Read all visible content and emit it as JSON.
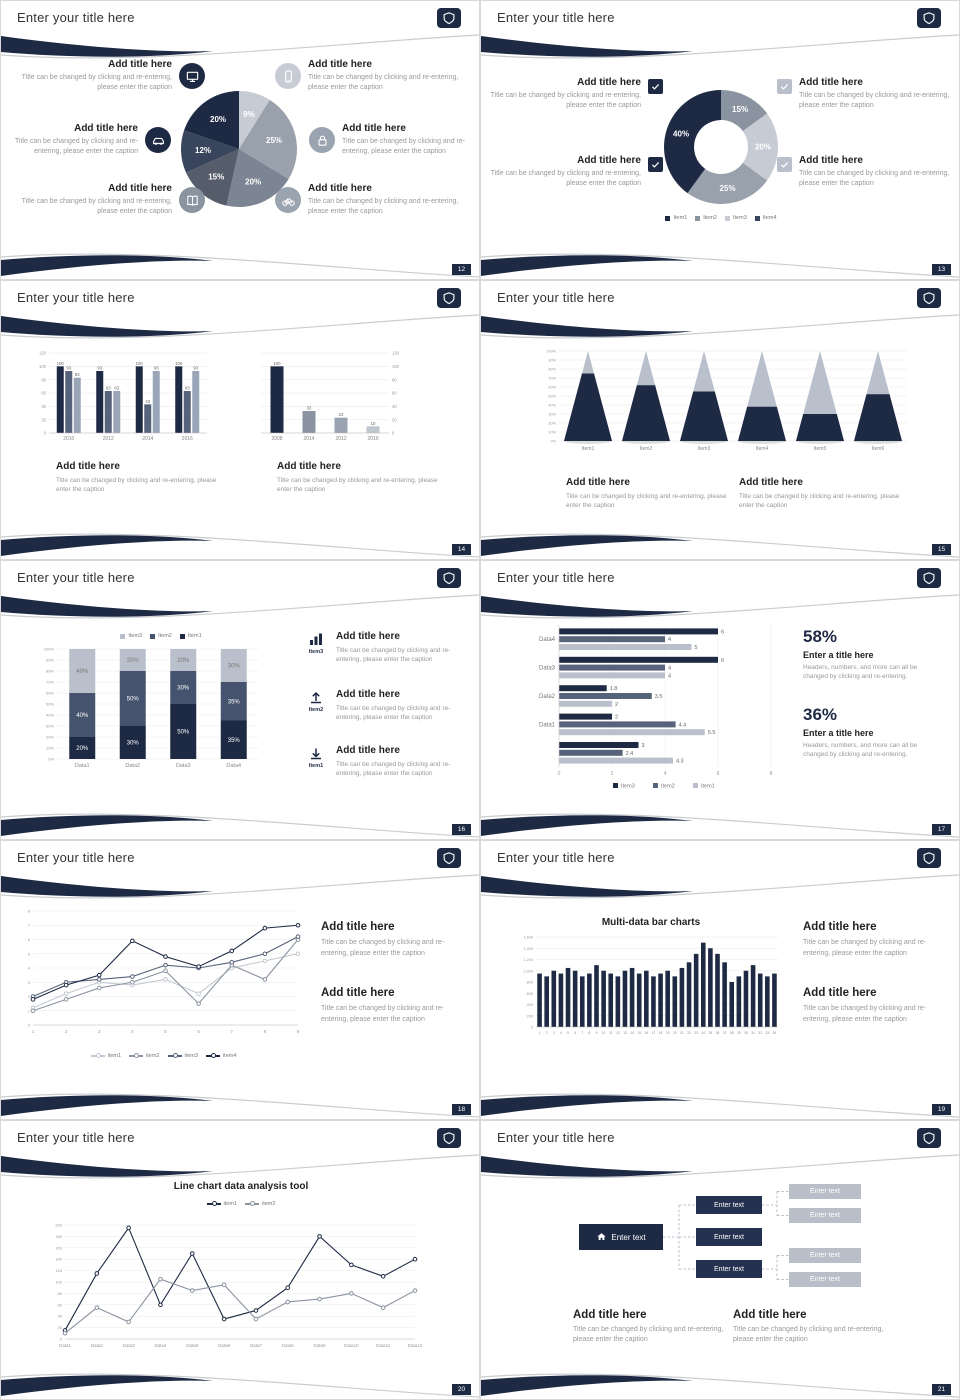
{
  "theme": {
    "navy": "#1e2a44",
    "slate": "#56637a",
    "gray_mid": "#8a93a0",
    "gray_light": "#b9c0cb",
    "pale": "#c7ccd4",
    "page_bg": "#d8d8d8"
  },
  "common": {
    "slide_title": "Enter your title here",
    "add_title": "Add title here",
    "caption": "Title can be changed by clicking and re-entering, please enter the caption"
  },
  "slides": {
    "s1": {
      "page": "12",
      "icons": {
        "left": [
          "monitor-icon",
          "car-icon",
          "book-icon"
        ],
        "right": [
          "phone-icon",
          "lock-icon",
          "bike-icon"
        ],
        "left_colors": [
          "#1e2a44",
          "#1e2a44",
          "#8a93a0"
        ],
        "right_colors": [
          "#c7ccd4",
          "#9aa3b0",
          "#9aa3b0"
        ]
      },
      "chart_data": {
        "type": "pie",
        "slices": [
          {
            "label": "9%",
            "value": 9,
            "color": "#c7ccd4"
          },
          {
            "label": "25%",
            "value": 25,
            "color": "#99a1ad"
          },
          {
            "label": "20%",
            "value": 20,
            "color": "#7c8593"
          },
          {
            "label": "15%",
            "value": 15,
            "color": "#555d6a"
          },
          {
            "label": "12%",
            "value": 12,
            "color": "#39455c"
          },
          {
            "label": "20%",
            "value": 20,
            "color": "#1e2a44"
          }
        ]
      }
    },
    "s2": {
      "page": "13",
      "checkbox_colors": {
        "left": "#1e2a44",
        "right": "#b9c0cb"
      },
      "chart_data": {
        "type": "donut",
        "slices": [
          {
            "label": "15%",
            "value": 15,
            "color": "#8a93a0"
          },
          {
            "label": "20%",
            "value": 20,
            "color": "#c7ccd4"
          },
          {
            "label": "25%",
            "value": 25,
            "color": "#99a1ad"
          },
          {
            "label": "40%",
            "value": 40,
            "color": "#1e2a44"
          }
        ],
        "legend": [
          {
            "label": "Item1",
            "color": "#1e2a44"
          },
          {
            "label": "Item2",
            "color": "#8a93a0"
          },
          {
            "label": "Item3",
            "color": "#c7ccd4"
          },
          {
            "label": "Item4",
            "color": "#39455c"
          }
        ]
      }
    },
    "s3": {
      "page": "14",
      "chart_data": [
        {
          "type": "bar",
          "categories": [
            "2010",
            "2012",
            "2014",
            "2016"
          ],
          "ylim": [
            0,
            120
          ],
          "series": [
            {
              "name": "Series1",
              "color": "#1e2a44",
              "values": [
                100,
                93,
                100,
                100
              ]
            },
            {
              "name": "Series2",
              "color": "#56637a",
              "values": [
                93,
                63,
                43,
                63
              ]
            },
            {
              "name": "Series3",
              "color": "#9aa6b8",
              "values": [
                83,
                63,
                93,
                93
              ]
            }
          ]
        },
        {
          "type": "bar",
          "categories": [
            "2008",
            "2014",
            "2012",
            "2010"
          ],
          "ylim": [
            0,
            120
          ],
          "series": [
            {
              "name": "Series1",
              "colors": [
                "#1e2a44",
                "#8a93a0",
                "#9aa3b0",
                "#c0c6cf"
              ],
              "values": [
                100,
                33,
                23,
                10
              ]
            }
          ]
        }
      ]
    },
    "s4": {
      "page": "15",
      "chart_data": {
        "type": "cone",
        "categories": [
          "Item1",
          "Item2",
          "Item3",
          "Item4",
          "Item5",
          "Item6"
        ],
        "values": [
          75,
          62,
          55,
          38,
          30,
          52
        ],
        "yticks": [
          "0%",
          "10%",
          "20%",
          "30%",
          "40%",
          "50%",
          "60%",
          "70%",
          "80%",
          "90%",
          "100%"
        ],
        "colors": {
          "dark": "#1e2a44",
          "light": "#b9c0cb"
        }
      }
    },
    "s5": {
      "page": "16",
      "chart_data": {
        "type": "stacked-bar",
        "categories": [
          "Data1",
          "Data2",
          "Data3",
          "Data4"
        ],
        "series": [
          {
            "name": "Item1",
            "color": "#1e2a44",
            "values": [
              20,
              30,
              50,
              35
            ]
          },
          {
            "name": "Item2",
            "color": "#45536e",
            "values": [
              40,
              50,
              30,
              35
            ]
          },
          {
            "name": "Item3",
            "color": "#b9c0cb",
            "values": [
              40,
              20,
              20,
              30
            ],
            "label_color": "#777777"
          }
        ],
        "legend": [
          {
            "label": "Item3",
            "color": "#b9c0cb"
          },
          {
            "label": "Item2",
            "color": "#45536e"
          },
          {
            "label": "Item1",
            "color": "#1e2a44"
          }
        ]
      },
      "side_items": [
        {
          "icon": "bar-chart-icon",
          "item": "Item3"
        },
        {
          "icon": "upload-icon",
          "item": "Item2"
        },
        {
          "icon": "download-icon",
          "item": "Item1"
        }
      ]
    },
    "s6": {
      "page": "17",
      "chart_data": {
        "type": "hbar",
        "xlim": [
          0,
          8
        ],
        "xticks": [
          0,
          2,
          4,
          6,
          8
        ],
        "series_colors": [
          "#1e2a44",
          "#56637a",
          "#b9c0cb"
        ],
        "groups": [
          {
            "label": "Data4",
            "values": [
              6,
              4,
              5
            ]
          },
          {
            "label": "Data3",
            "values": [
              6,
              4,
              4
            ]
          },
          {
            "label": "Data2",
            "values": [
              1.8,
              3.5,
              2
            ]
          },
          {
            "label": "Data1",
            "values": [
              2,
              4.4,
              5.5
            ]
          },
          {
            "label": "",
            "values": [
              3,
              2.4,
              4.3
            ]
          }
        ],
        "legend": [
          {
            "label": "Item3",
            "color": "#1e2a44"
          },
          {
            "label": "Item2",
            "color": "#56637a"
          },
          {
            "label": "Item1",
            "color": "#b9c0cb"
          }
        ]
      },
      "stats": [
        {
          "pct": "58%",
          "title": "Enter a title here",
          "caption": "Headers, numbers, and more can all be changed by clicking and re-entering."
        },
        {
          "pct": "36%",
          "title": "Enter a title here",
          "caption": "Headers, numbers, and more can all be changed by clicking and re-entering."
        }
      ]
    },
    "s7": {
      "page": "18",
      "chart_data": {
        "type": "line",
        "x_labels": [
          "1",
          "2",
          "3",
          "4",
          "5",
          "6",
          "7",
          "8",
          "9"
        ],
        "ylim": [
          0,
          8
        ],
        "series": [
          {
            "name": "item1",
            "color": "#c3c9d2",
            "values": [
              1.2,
              2.2,
              3,
              2.8,
              3.2,
              2.2,
              4,
              4.5,
              5
            ]
          },
          {
            "name": "item2",
            "color": "#8a93a0",
            "values": [
              1,
              1.8,
              2.6,
              3,
              3.8,
              1.5,
              4.2,
              3.2,
              6
            ]
          },
          {
            "name": "item3",
            "color": "#56637a",
            "values": [
              2,
              3,
              3.2,
              3.4,
              4.2,
              4,
              4.4,
              5,
              6.2
            ]
          },
          {
            "name": "item4",
            "color": "#1e2a44",
            "values": [
              1.8,
              2.8,
              3.5,
              5.9,
              4.8,
              4.1,
              5.2,
              6.8,
              7
            ]
          }
        ]
      }
    },
    "s8": {
      "page": "19",
      "chart_title": "Multi-data bar charts",
      "chart_data": {
        "type": "bar",
        "color": "#1e2a44",
        "ylim": [
          0,
          1600
        ],
        "x_labels": [
          "1",
          "2",
          "3",
          "4",
          "5",
          "6",
          "7",
          "8",
          "9",
          "10",
          "11",
          "12",
          "13",
          "14",
          "15",
          "16",
          "17",
          "18",
          "19",
          "20",
          "21",
          "22",
          "23",
          "24",
          "25",
          "26",
          "27",
          "28",
          "29",
          "30",
          "31",
          "32",
          "33",
          "34"
        ],
        "values": [
          950,
          900,
          1000,
          950,
          1050,
          1000,
          900,
          950,
          1100,
          1000,
          950,
          900,
          1000,
          1050,
          950,
          1000,
          900,
          950,
          1000,
          900,
          1050,
          1150,
          1300,
          1500,
          1400,
          1300,
          1150,
          800,
          900,
          1000,
          1100,
          950,
          900,
          950
        ]
      }
    },
    "s9": {
      "page": "20",
      "chart_title": "Line chart data analysis tool",
      "chart_data": {
        "type": "line",
        "ylim": [
          0,
          200
        ],
        "x_labels": [
          "Data1",
          "Data2",
          "Data3",
          "Data4",
          "Data5",
          "Data6",
          "Data7",
          "Data8",
          "Data9",
          "Data10",
          "Data11",
          "Data12"
        ],
        "series": [
          {
            "name": "item1",
            "color": "#1e2a44",
            "values": [
              15,
              115,
              195,
              60,
              150,
              35,
              50,
              90,
              180,
              130,
              110,
              140
            ]
          },
          {
            "name": "item2",
            "color": "#8a93a0",
            "values": [
              10,
              55,
              30,
              105,
              85,
              95,
              35,
              65,
              70,
              80,
              55,
              85
            ]
          }
        ]
      }
    },
    "s10": {
      "page": "21",
      "diagram": {
        "main": "Enter text",
        "mid": [
          "Enter text",
          "Enter text",
          "Enter text"
        ],
        "end": [
          "Enter text",
          "Enter text",
          "Enter text",
          "Enter text"
        ]
      }
    }
  }
}
